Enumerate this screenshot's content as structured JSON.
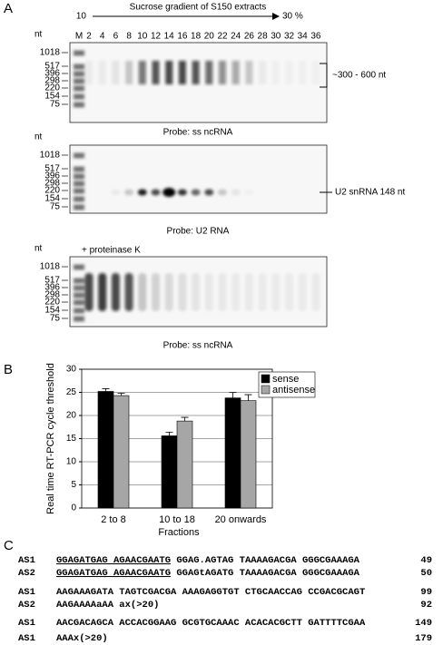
{
  "panel_a": {
    "label": "A",
    "gradient": {
      "start": "10",
      "title": "Sucrose gradient of S150 extracts",
      "end": "30 %"
    },
    "lanes": [
      "M",
      "2",
      "4",
      "6",
      "8",
      "10",
      "12",
      "14",
      "16",
      "18",
      "20",
      "22",
      "24",
      "26",
      "28",
      "30",
      "32",
      "34",
      "36"
    ],
    "gels": [
      {
        "nt_label": "nt",
        "markers": [
          "1018",
          "517",
          "396",
          "298",
          "220",
          "154",
          "75"
        ],
        "annotation": "~300 - 600 nt",
        "caption": "Probe: ss ncRNA"
      },
      {
        "nt_label": "nt",
        "markers": [
          "1018",
          "517",
          "396",
          "298",
          "220",
          "154",
          "75"
        ],
        "annotation": "U2 snRNA 148 nt",
        "caption": "Probe: U2 RNA"
      },
      {
        "nt_label": "nt",
        "treatment": "+ proteinase K",
        "markers": [
          "1018",
          "517",
          "396",
          "298",
          "220",
          "154",
          "75"
        ],
        "caption": "Probe: ss ncRNA"
      }
    ]
  },
  "panel_b": {
    "label": "B"
  },
  "chart_data": {
    "type": "bar",
    "y_label": "Real time RT-PCR cycle threshold",
    "x_label": "Fractions",
    "categories": [
      "2 to 8",
      "10 to 18",
      "20 onwards"
    ],
    "series": [
      {
        "name": "sense",
        "color": "#000000",
        "values": [
          25.2,
          15.6,
          23.8
        ],
        "errors": [
          0.6,
          0.8,
          1.2
        ]
      },
      {
        "name": "antisense",
        "color": "#a6a6a6",
        "values": [
          24.3,
          18.8,
          23.2
        ],
        "errors": [
          0.5,
          0.8,
          1.3
        ]
      }
    ],
    "ylim": [
      0,
      30
    ],
    "yticks": [
      0,
      5,
      10,
      15,
      20,
      25,
      30
    ],
    "grid": true,
    "legend": "upper right"
  },
  "panel_c": {
    "label": "C",
    "rows": [
      {
        "name": "AS1",
        "underlined": "GGAGATGAG AGAACGAATG",
        "sequence": "GGAG.AGTAG TAAAAGACGA GGGCGAAAGA",
        "end": "49"
      },
      {
        "name": "AS2",
        "underlined": "GGAGATGAG AGAACGAATG",
        "sequence": "GGAGtAGATG TAAAAGACGA GGGCGAAAGA",
        "end": "50"
      },
      {
        "name": "AS1",
        "sequence": "AAGAAAGATA TAGTCGACGA AAAGAGGTGT CTGCAACCAG CCGACGCAGT",
        "end": "99"
      },
      {
        "name": "AS2",
        "sequence": "AAGAAAAaAA ax(>20)",
        "end": "92"
      },
      {
        "name": "AS1",
        "sequence": "AACGACAGCA ACCACGGAAG GCGTGCAAAC ACACACGCTT GATTTTCGAA",
        "end": "149"
      },
      {
        "name": "AS1",
        "sequence": "AAAx(>20)",
        "end": "179"
      }
    ]
  }
}
